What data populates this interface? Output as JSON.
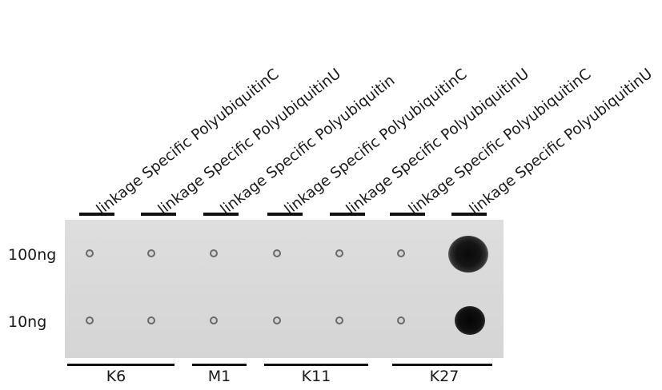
{
  "lanes": [
    {
      "label": "linkage Specific PolyubiquitinC"
    },
    {
      "label": "linkage Specific PolyubiquitinU"
    },
    {
      "label": "linkage Specific Polyubiquitin"
    },
    {
      "label": "linkage Specific PolyubiquitinC"
    },
    {
      "label": "linkage Specific PolyubiquitinU"
    },
    {
      "label": "linkage Specific PolyubiquitinC"
    },
    {
      "label": "linkage Specific PolyubiquitinU"
    }
  ],
  "rows": [
    {
      "label": "100ng"
    },
    {
      "label": "10ng"
    }
  ],
  "groups": [
    {
      "label": "K6"
    },
    {
      "label": "M1"
    },
    {
      "label": "K11"
    },
    {
      "label": "K27"
    }
  ],
  "colors": {
    "membrane": "#d9d9d9",
    "positive_spot": "#141414"
  }
}
